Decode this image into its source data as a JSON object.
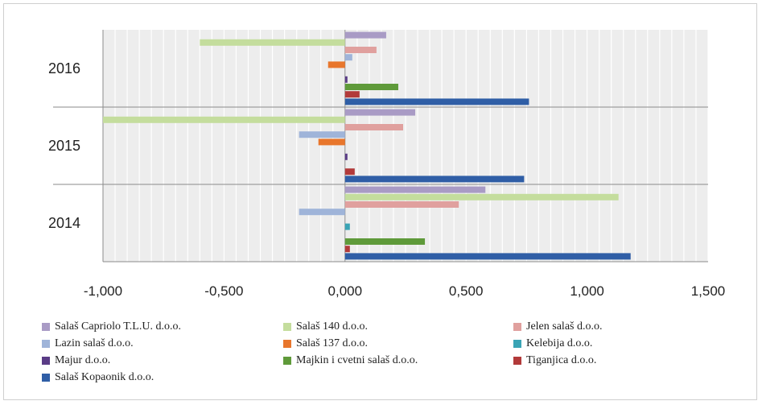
{
  "chart_data": {
    "type": "bar",
    "orientation": "horizontal",
    "categories": [
      "2016",
      "2015",
      "2014"
    ],
    "xlim": [
      -1.0,
      1.5
    ],
    "xticks": [
      "-1,000",
      "-0,500",
      "0,000",
      "0,500",
      "1,000",
      "1,500"
    ],
    "grid": true,
    "legend_position": "bottom",
    "series": [
      {
        "name": "Salaš Capriolo T.L.U. d.o.o.",
        "color": "#a99bc5",
        "values": [
          0.17,
          0.29,
          0.58
        ]
      },
      {
        "name": "Salaš 140 d.o.o.",
        "color": "#c4dd9d",
        "values": [
          -0.6,
          -1.0,
          1.13
        ]
      },
      {
        "name": "Jelen salaš d.o.o.",
        "color": "#e0a09e",
        "values": [
          0.13,
          0.24,
          0.47
        ]
      },
      {
        "name": "Lazin salaš d.o.o.",
        "color": "#9fb4d9",
        "values": [
          0.03,
          -0.19,
          -0.19
        ]
      },
      {
        "name": "Salaš 137 d.o.o.",
        "color": "#e8762c",
        "values": [
          -0.07,
          -0.11,
          0.0
        ]
      },
      {
        "name": "Kelebija d.o.o.",
        "color": "#3aa4b5",
        "values": [
          0.0,
          0.0,
          0.02
        ]
      },
      {
        "name": "Majur d.o.o.",
        "color": "#5a3c86",
        "values": [
          0.01,
          0.01,
          0.0
        ]
      },
      {
        "name": "Majkin i cvetni salaš d.o.o.",
        "color": "#5f9a3a",
        "values": [
          0.22,
          0.0,
          0.33
        ]
      },
      {
        "name": "Tiganjica d.o.o.",
        "color": "#b23a3a",
        "values": [
          0.06,
          0.04,
          0.02
        ]
      },
      {
        "name": "Salaš Kopaonik d.o.o.",
        "color": "#2f5ea6",
        "values": [
          0.76,
          0.74,
          1.18
        ]
      }
    ]
  }
}
